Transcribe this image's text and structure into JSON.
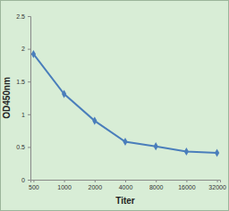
{
  "chart_data": {
    "type": "line",
    "x_label": "Titer",
    "y_label": "OD450nm",
    "categories": [
      "500",
      "1000",
      "2000",
      "4000",
      "8000",
      "16000",
      "32000"
    ],
    "values": [
      1.92,
      1.31,
      0.9,
      0.58,
      0.51,
      0.43,
      0.41
    ],
    "color": "#4a7ebb",
    "marker": "diamond",
    "line_style": "solid",
    "ylim": [
      0,
      2.5
    ],
    "yticks": [
      0,
      0.5,
      1,
      1.5,
      2,
      2.5
    ],
    "grid": false
  }
}
